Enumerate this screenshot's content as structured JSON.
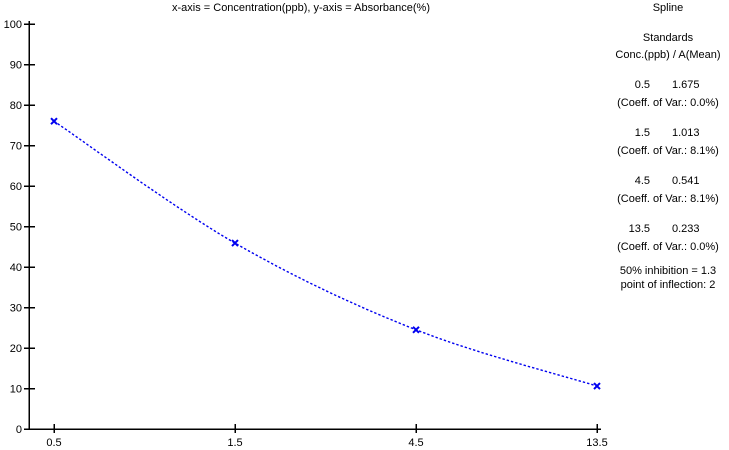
{
  "title": "x-axis = Concentration(ppb), y-axis = Absorbance(%)",
  "method_label": "Spline",
  "panel": {
    "heading": "Standards",
    "subheading": "Conc.(ppb) / A(Mean)",
    "standards": [
      {
        "conc": "0.5",
        "mean": "1.675",
        "cov": "(Coeff. of Var.: 0.0%)"
      },
      {
        "conc": "1.5",
        "mean": "1.013",
        "cov": "(Coeff. of Var.: 8.1%)"
      },
      {
        "conc": "4.5",
        "mean": "0.541",
        "cov": "(Coeff. of Var.: 8.1%)"
      },
      {
        "conc": "13.5",
        "mean": "0.233",
        "cov": "(Coeff. of Var.: 0.0%)"
      }
    ],
    "inhibition_line": "50% inhibition = 1.3",
    "inflection_line": "point of inflection: 2"
  },
  "chart_data": {
    "type": "line",
    "title": "x-axis = Concentration(ppb), y-axis = Absorbance(%)",
    "xlabel": "Concentration(ppb)",
    "ylabel": "Absorbance(%)",
    "x_tick_labels": [
      "0.5",
      "1.5",
      "4.5",
      "13.5"
    ],
    "x": [
      0.5,
      1.5,
      4.5,
      13.5
    ],
    "series": [
      {
        "name": "Spline",
        "values": [
          76.0,
          45.9,
          24.5,
          10.6
        ]
      }
    ],
    "y_ticks": [
      0,
      10,
      20,
      30,
      40,
      50,
      60,
      70,
      80,
      90,
      100
    ],
    "ylim": [
      0,
      100
    ],
    "grid": false,
    "legend": "none",
    "line_style": "dotted",
    "marker": "x",
    "colors": {
      "line": "#0000f0",
      "axis": "#000000",
      "text": "#000000",
      "background": "#ffffff"
    }
  }
}
